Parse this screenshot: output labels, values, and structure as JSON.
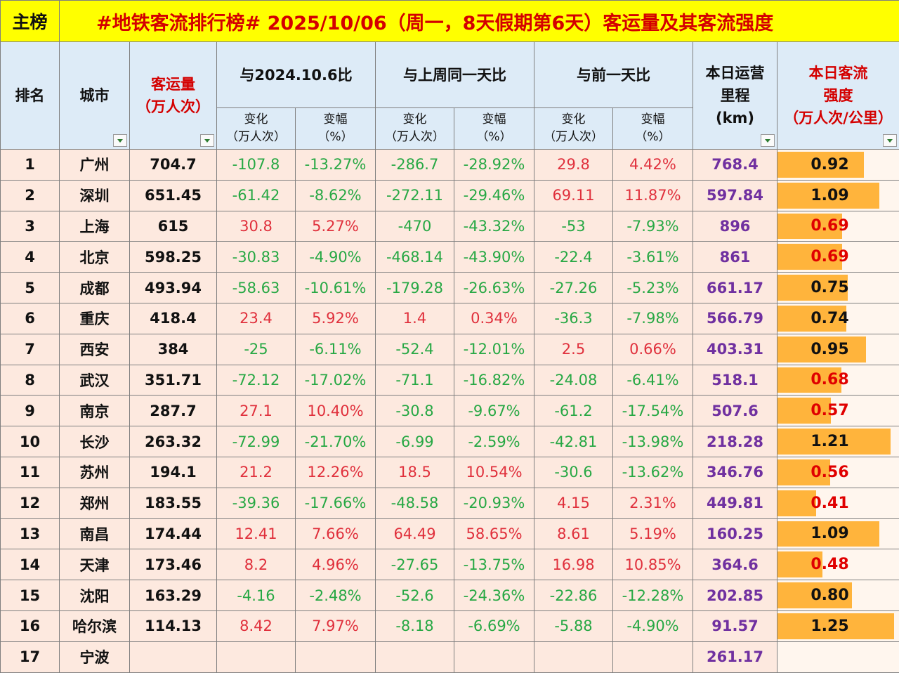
{
  "title_bar": {
    "tab_label": "主榜",
    "title": "#地铁客流排行榜# 2025/10/06（周一，8天假期第6天）客运量及其客流强度"
  },
  "headers": {
    "rank": "排名",
    "city": "城市",
    "volume_line1": "客运量",
    "volume_line2": "（万人次）",
    "group_yoy": "与2024.10.6比",
    "group_wow": "与上周同一天比",
    "group_dod": "与前一天比",
    "change_line1": "变化",
    "change_line2": "（万人次）",
    "pct_line1": "变幅",
    "pct_line2": "（%）",
    "length_line1": "本日运营",
    "length_line2": "里程",
    "length_line3": "(km)",
    "intensity_line1": "本日客流",
    "intensity_line2": "强度",
    "intensity_line3": "（万人次/公里）"
  },
  "colors": {
    "title_bg": "#ffff00",
    "title_text": "#d40000",
    "header_bg": "#ddebf7",
    "row_bg": "#fde9df",
    "positive_text": "#e0303c",
    "negative_text": "#27a844",
    "length_text": "#7030a0",
    "intensity_bar": "#ffb43c"
  },
  "rows": [
    {
      "rank": "1",
      "city": "广州",
      "volume": "704.7",
      "yoy_change": "-107.8",
      "yoy_pct": "-13.27%",
      "wow_change": "-286.7",
      "wow_pct": "-28.92%",
      "dod_change": "29.8",
      "dod_pct": "4.42%",
      "length": "768.4",
      "intensity": "0.92"
    },
    {
      "rank": "2",
      "city": "深圳",
      "volume": "651.45",
      "yoy_change": "-61.42",
      "yoy_pct": "-8.62%",
      "wow_change": "-272.11",
      "wow_pct": "-29.46%",
      "dod_change": "69.11",
      "dod_pct": "11.87%",
      "length": "597.84",
      "intensity": "1.09"
    },
    {
      "rank": "3",
      "city": "上海",
      "volume": "615",
      "yoy_change": "30.8",
      "yoy_pct": "5.27%",
      "wow_change": "-470",
      "wow_pct": "-43.32%",
      "dod_change": "-53",
      "dod_pct": "-7.93%",
      "length": "896",
      "intensity": "0.69"
    },
    {
      "rank": "4",
      "city": "北京",
      "volume": "598.25",
      "yoy_change": "-30.83",
      "yoy_pct": "-4.90%",
      "wow_change": "-468.14",
      "wow_pct": "-43.90%",
      "dod_change": "-22.4",
      "dod_pct": "-3.61%",
      "length": "861",
      "intensity": "0.69"
    },
    {
      "rank": "5",
      "city": "成都",
      "volume": "493.94",
      "yoy_change": "-58.63",
      "yoy_pct": "-10.61%",
      "wow_change": "-179.28",
      "wow_pct": "-26.63%",
      "dod_change": "-27.26",
      "dod_pct": "-5.23%",
      "length": "661.17",
      "intensity": "0.75"
    },
    {
      "rank": "6",
      "city": "重庆",
      "volume": "418.4",
      "yoy_change": "23.4",
      "yoy_pct": "5.92%",
      "wow_change": "1.4",
      "wow_pct": "0.34%",
      "dod_change": "-36.3",
      "dod_pct": "-7.98%",
      "length": "566.79",
      "intensity": "0.74"
    },
    {
      "rank": "7",
      "city": "西安",
      "volume": "384",
      "yoy_change": "-25",
      "yoy_pct": "-6.11%",
      "wow_change": "-52.4",
      "wow_pct": "-12.01%",
      "dod_change": "2.5",
      "dod_pct": "0.66%",
      "length": "403.31",
      "intensity": "0.95"
    },
    {
      "rank": "8",
      "city": "武汉",
      "volume": "351.71",
      "yoy_change": "-72.12",
      "yoy_pct": "-17.02%",
      "wow_change": "-71.1",
      "wow_pct": "-16.82%",
      "dod_change": "-24.08",
      "dod_pct": "-6.41%",
      "length": "518.1",
      "intensity": "0.68"
    },
    {
      "rank": "9",
      "city": "南京",
      "volume": "287.7",
      "yoy_change": "27.1",
      "yoy_pct": "10.40%",
      "wow_change": "-30.8",
      "wow_pct": "-9.67%",
      "dod_change": "-61.2",
      "dod_pct": "-17.54%",
      "length": "507.6",
      "intensity": "0.57"
    },
    {
      "rank": "10",
      "city": "长沙",
      "volume": "263.32",
      "yoy_change": "-72.99",
      "yoy_pct": "-21.70%",
      "wow_change": "-6.99",
      "wow_pct": "-2.59%",
      "dod_change": "-42.81",
      "dod_pct": "-13.98%",
      "length": "218.28",
      "intensity": "1.21"
    },
    {
      "rank": "11",
      "city": "苏州",
      "volume": "194.1",
      "yoy_change": "21.2",
      "yoy_pct": "12.26%",
      "wow_change": "18.5",
      "wow_pct": "10.54%",
      "dod_change": "-30.6",
      "dod_pct": "-13.62%",
      "length": "346.76",
      "intensity": "0.56"
    },
    {
      "rank": "12",
      "city": "郑州",
      "volume": "183.55",
      "yoy_change": "-39.36",
      "yoy_pct": "-17.66%",
      "wow_change": "-48.58",
      "wow_pct": "-20.93%",
      "dod_change": "4.15",
      "dod_pct": "2.31%",
      "length": "449.81",
      "intensity": "0.41"
    },
    {
      "rank": "13",
      "city": "南昌",
      "volume": "174.44",
      "yoy_change": "12.41",
      "yoy_pct": "7.66%",
      "wow_change": "64.49",
      "wow_pct": "58.65%",
      "dod_change": "8.61",
      "dod_pct": "5.19%",
      "length": "160.25",
      "intensity": "1.09"
    },
    {
      "rank": "14",
      "city": "天津",
      "volume": "173.46",
      "yoy_change": "8.2",
      "yoy_pct": "4.96%",
      "wow_change": "-27.65",
      "wow_pct": "-13.75%",
      "dod_change": "16.98",
      "dod_pct": "10.85%",
      "length": "364.6",
      "intensity": "0.48"
    },
    {
      "rank": "15",
      "city": "沈阳",
      "volume": "163.29",
      "yoy_change": "-4.16",
      "yoy_pct": "-2.48%",
      "wow_change": "-52.6",
      "wow_pct": "-24.36%",
      "dod_change": "-22.86",
      "dod_pct": "-12.28%",
      "length": "202.85",
      "intensity": "0.80"
    },
    {
      "rank": "16",
      "city": "哈尔滨",
      "volume": "114.13",
      "yoy_change": "8.42",
      "yoy_pct": "7.97%",
      "wow_change": "-8.18",
      "wow_pct": "-6.69%",
      "dod_change": "-5.88",
      "dod_pct": "-4.90%",
      "length": "91.57",
      "intensity": "1.25"
    },
    {
      "rank": "17",
      "city": "宁波",
      "volume": "",
      "yoy_change": "",
      "yoy_pct": "",
      "wow_change": "",
      "wow_pct": "",
      "dod_change": "",
      "dod_pct": "",
      "length": "261.17",
      "intensity": ""
    }
  ]
}
